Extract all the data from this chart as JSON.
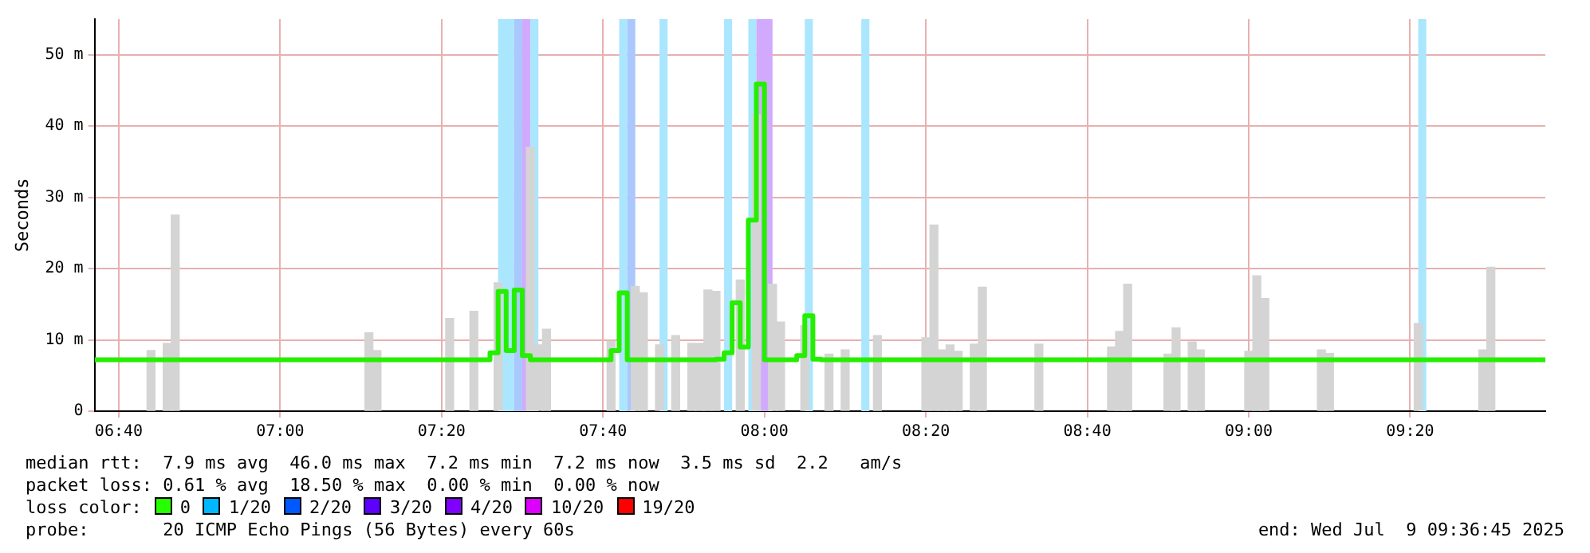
{
  "chart_data": {
    "type": "step",
    "ylabel": "Seconds",
    "xlim": [
      6.6167,
      9.6125
    ],
    "xticks": [
      {
        "value": 6.6667,
        "label": "06:40"
      },
      {
        "value": 7,
        "label": "07:00"
      },
      {
        "value": 7.3333,
        "label": "07:20"
      },
      {
        "value": 7.6667,
        "label": "07:40"
      },
      {
        "value": 8,
        "label": "08:00"
      },
      {
        "value": 8.3333,
        "label": "08:20"
      },
      {
        "value": 8.6667,
        "label": "08:40"
      },
      {
        "value": 9,
        "label": "09:00"
      },
      {
        "value": 9.3333,
        "label": "09:20"
      }
    ],
    "ylim": [
      0,
      55
    ],
    "yticks": [
      0,
      {
        "value": 10,
        "label": "10 m"
      },
      {
        "value": 20,
        "label": "20 m"
      },
      {
        "value": 30,
        "label": "30 m"
      },
      {
        "value": 40,
        "label": "40 m"
      },
      {
        "value": 50,
        "label": "50 m"
      }
    ],
    "grid": true,
    "legend": false,
    "series": [
      {
        "type": "bar",
        "color": "#d4d4d4",
        "x": [
          6.7333,
          6.7667,
          6.7833,
          7.1833,
          7.2,
          7.35,
          7.4,
          7.45,
          7.4667,
          7.4833,
          7.5,
          7.5167,
          7.5333,
          7.55,
          7.6833,
          7.7,
          7.7167,
          7.7333,
          7.75,
          7.7833,
          7.8,
          7.8167,
          7.85,
          7.8667,
          7.8833,
          7.9,
          7.9167,
          7.9333,
          7.95,
          7.9667,
          7.9833,
          8.0167,
          8.0333,
          8.0833,
          8.1,
          8.1167,
          8.1333,
          8.1667,
          8.2,
          8.2167,
          8.2333,
          8.3333,
          8.35,
          8.3667,
          8.3833,
          8.4,
          8.4333,
          8.45,
          8.5667,
          8.7167,
          8.7333,
          8.75,
          8.8333,
          8.85,
          8.8833,
          8.9,
          9,
          9.0167,
          9.0333,
          9.15,
          9.1667,
          9.35,
          9.3667,
          9.4833,
          9.5
        ],
        "values": [
          8.5,
          9.5,
          27.5,
          11,
          8.5,
          13,
          14,
          18,
          null,
          null,
          null,
          37,
          9.3,
          11.5,
          9.8,
          null,
          null,
          17.5,
          16.6,
          9.3,
          null,
          10.6,
          9.5,
          9.5,
          17,
          16.8,
          null,
          null,
          18.4,
          null,
          41.6,
          17.8,
          12.5,
          12,
          null,
          null,
          8,
          8.6,
          null,
          null,
          10.6,
          10.3,
          26.1,
          8.6,
          9.3,
          8.4,
          9.4,
          17.4,
          9.4,
          9,
          11.2,
          17.8,
          8,
          11.7,
          9.7,
          8.6,
          8.4,
          19,
          15.8,
          8.6,
          8.1,
          12.3,
          null,
          8.6,
          20.2
        ]
      },
      {
        "name": "0",
        "color": "#26ee00",
        "x": [
          6.6167,
          7.4333,
          7.45,
          7.4667,
          7.4833,
          7.5,
          7.5167,
          7.5333,
          7.6833,
          7.7,
          7.7167,
          7.9,
          7.9167,
          7.9333,
          7.95,
          7.9667,
          7.9833,
          8,
          8.0167,
          8.0667,
          8.0833,
          8.1,
          8.1167,
          9.6125
        ],
        "values": [
          7.2,
          7.2,
          8.2,
          16.8,
          8.5,
          17,
          7.8,
          7.2,
          7.2,
          8.5,
          16.6,
          7.2,
          7.3,
          8.2,
          15.2,
          9,
          26.8,
          45.9,
          7.2,
          7.2,
          7.8,
          13.4,
          7.3,
          7.2
        ]
      }
    ],
    "bands": [
      {
        "axis": "x",
        "from": 7.45,
        "to": 7.4833,
        "color": "#aae6fd"
      },
      {
        "axis": "x",
        "from": 7.4833,
        "to": 7.5,
        "color": "#aac8fd"
      },
      {
        "axis": "x",
        "from": 7.5,
        "to": 7.5167,
        "color": "#d2aafd"
      },
      {
        "axis": "x",
        "from": 7.5167,
        "to": 7.5333,
        "color": "#aae6fd"
      },
      {
        "axis": "x",
        "from": 7.7,
        "to": 7.7167,
        "color": "#aae6fd"
      },
      {
        "axis": "x",
        "from": 7.7167,
        "to": 7.7333,
        "color": "#aac8fd"
      },
      {
        "axis": "x",
        "from": 7.7833,
        "to": 7.8,
        "color": "#aae6fd"
      },
      {
        "axis": "x",
        "from": 7.9167,
        "to": 7.9333,
        "color": "#aae6fd"
      },
      {
        "axis": "x",
        "from": 7.9667,
        "to": 7.9833,
        "color": "#aae6fd"
      },
      {
        "axis": "x",
        "from": 7.9833,
        "to": 8.0167,
        "color": "#d2aafd"
      },
      {
        "axis": "x",
        "from": 8.0833,
        "to": 8.1,
        "color": "#aae6fd"
      },
      {
        "axis": "x",
        "from": 8.2,
        "to": 8.2167,
        "color": "#aae6fd"
      },
      {
        "axis": "x",
        "from": 9.35,
        "to": 9.3667,
        "color": "#aae6fd"
      }
    ],
    "annotations": [
      "median rtt:  7.9 ms avg  46.0 ms max  7.2 ms min  7.2 ms now  3.5 ms sd  2.2   am/s",
      "packet loss: 0.61 % avg  18.50 % max  0.00 % min  0.00 % now",
      "loss color:",
      "0",
      "1/20",
      "2/20",
      "3/20",
      "4/20",
      "10/20",
      "19/20",
      "probe:       20 ICMP Echo Pings (56 Bytes) every 60s",
      "end: Wed Jul  9 09:36:45 2025"
    ]
  }
}
